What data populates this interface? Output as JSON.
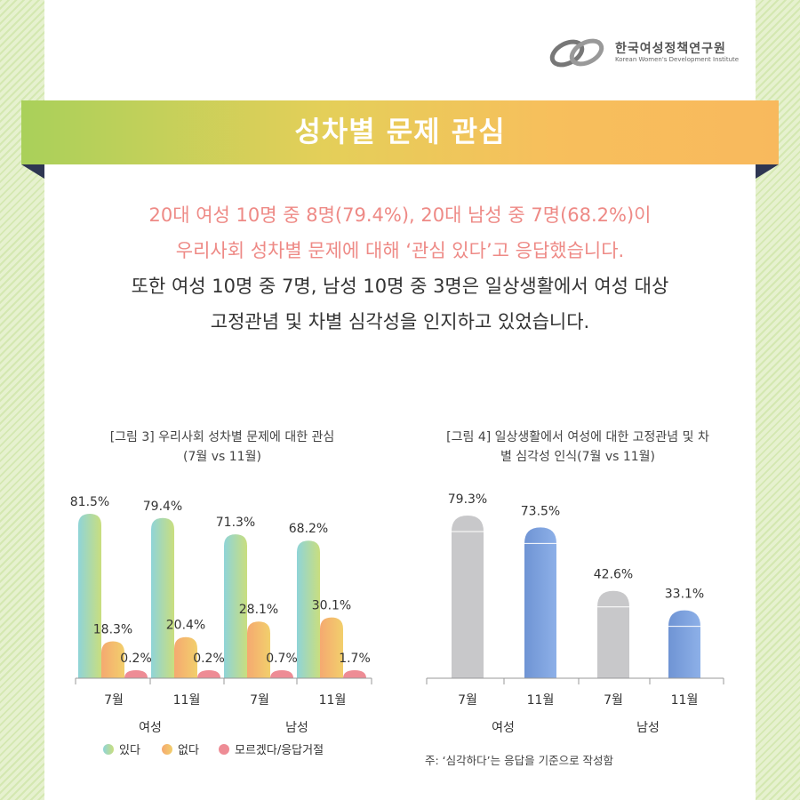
{
  "org": {
    "name_kr": "한국여성정책연구원",
    "name_en": "Korean Women's Development Institute"
  },
  "banner": {
    "title": "성차별 문제 관심"
  },
  "summary": {
    "line1": "20대 여성 10명 중 8명(79.4%), 20대 남성 중 7명(68.2%)이",
    "line2": "우리사회 성차별 문제에 대해 ‘관심 있다’고 응답했습니다.",
    "line3": "또한 여성 10명 중 7명, 남성 10명 중 3명은 일상생활에서 여성 대상",
    "line4": "고정관념 및 차별 심각성을 인지하고 있었습니다."
  },
  "colors": {
    "pink_text": "#ee8a86",
    "series_yes": [
      "#8fd4d8",
      "#c9de7e"
    ],
    "series_no": [
      "#f5a970",
      "#f2cf6c"
    ],
    "series_dk": "#ee8c95",
    "gray_bar": "#c8c8ca",
    "blue_bar": [
      "#6f94d4",
      "#8db0e8"
    ]
  },
  "chart_data": [
    {
      "type": "bar",
      "title_line1": "[그림 3] 우리사회 성차별 문제에 대한 관심",
      "title_line2": "(7월 vs 11월)",
      "groups": [
        "여성",
        "남성"
      ],
      "categories": [
        "7월",
        "11월",
        "7월",
        "11월"
      ],
      "series": [
        {
          "name": "있다",
          "values": [
            81.5,
            79.4,
            71.3,
            68.2
          ]
        },
        {
          "name": "없다",
          "values": [
            18.3,
            20.4,
            28.1,
            30.1
          ]
        },
        {
          "name": "모르겠다/응답거절",
          "values": [
            0.2,
            0.2,
            0.7,
            1.7
          ]
        }
      ],
      "labels": [
        [
          "81.5%",
          "79.4%",
          "71.3%",
          "68.2%"
        ],
        [
          "18.3%",
          "20.4%",
          "28.1%",
          "30.1%"
        ],
        [
          "0.2%",
          "0.2%",
          "0.7%",
          "1.7%"
        ]
      ],
      "ylim": [
        0,
        100
      ]
    },
    {
      "type": "bar",
      "title_line1": "[그림 4] 일상생활에서 여성에 대한 고정관념 및 차",
      "title_line2": "별 심각성 인식(7월 vs 11월)",
      "groups": [
        "여성",
        "남성"
      ],
      "categories": [
        "7월",
        "11월",
        "7월",
        "11월"
      ],
      "values": [
        79.3,
        73.5,
        42.6,
        33.1
      ],
      "labels": [
        "79.3%",
        "73.5%",
        "42.6%",
        "33.1%"
      ],
      "ylim": [
        0,
        100
      ],
      "note": "주: ‘심각하다’는 응답을 기준으로 작성함"
    }
  ]
}
